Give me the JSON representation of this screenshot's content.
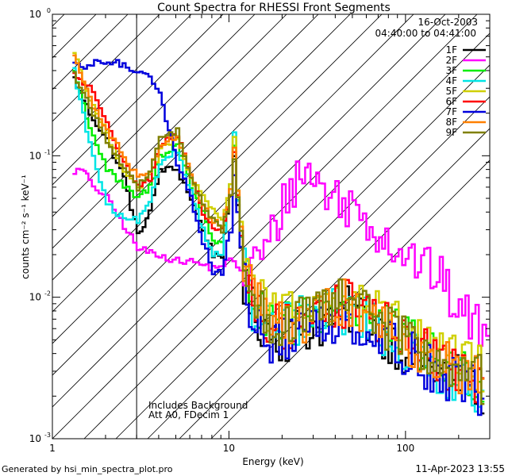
{
  "chart_data": {
    "type": "line",
    "title": "Count Spectra for RHESSI Front Segments",
    "xlabel": "Energy (keV)",
    "ylabel": "counts cm⁻² s⁻¹ keV⁻¹",
    "xscale": "log",
    "yscale": "log",
    "xlim": [
      1,
      300
    ],
    "ylim": [
      0.001,
      1
    ],
    "x_ticks": [
      {
        "value": 1,
        "label": "1"
      },
      {
        "value": 10,
        "label": "10"
      },
      {
        "value": 100,
        "label": "100"
      }
    ],
    "y_ticks": [
      {
        "value": 1,
        "label": "10",
        "exp": "0"
      },
      {
        "value": 0.1,
        "label": "10",
        "exp": "-1"
      },
      {
        "value": 0.01,
        "label": "10",
        "exp": "-2"
      },
      {
        "value": 0.001,
        "label": "10",
        "exp": "-3"
      }
    ],
    "date_label": "16-Oct-2003",
    "time_range_label": "04:40:00 to 04:41:00",
    "threshold_energy": 3,
    "annotations": [
      "Includes Background",
      "Att A0, FDecim 1"
    ],
    "series": [
      {
        "name": "1F",
        "color": "#000000",
        "points": [
          [
            1.3,
            0.35
          ],
          [
            1.6,
            0.2
          ],
          [
            2.0,
            0.13
          ],
          [
            2.5,
            0.07
          ],
          [
            3.0,
            0.027
          ],
          [
            3.5,
            0.04
          ],
          [
            4.0,
            0.08
          ],
          [
            5.0,
            0.08
          ],
          [
            6.0,
            0.05
          ],
          [
            7.0,
            0.03
          ],
          [
            8.0,
            0.02
          ],
          [
            9.0,
            0.02
          ],
          [
            10.0,
            0.05
          ],
          [
            10.5,
            0.1
          ],
          [
            11.0,
            0.045
          ],
          [
            12.0,
            0.012
          ],
          [
            14.0,
            0.007
          ],
          [
            17.0,
            0.006
          ],
          [
            20.0,
            0.005
          ],
          [
            25.0,
            0.006
          ],
          [
            30.0,
            0.006
          ],
          [
            40.0,
            0.008
          ],
          [
            50.0,
            0.008
          ],
          [
            60.0,
            0.007
          ],
          [
            80.0,
            0.005
          ],
          [
            100.0,
            0.004
          ],
          [
            150.0,
            0.003
          ],
          [
            200.0,
            0.0028
          ],
          [
            280.0,
            0.002
          ]
        ]
      },
      {
        "name": "2F",
        "color": "#ff00ff",
        "points": [
          [
            1.3,
            0.078
          ],
          [
            1.5,
            0.078
          ],
          [
            1.6,
            0.065
          ],
          [
            2.0,
            0.05
          ],
          [
            2.5,
            0.032
          ],
          [
            3.0,
            0.022
          ],
          [
            4.0,
            0.02
          ],
          [
            5.0,
            0.018
          ],
          [
            6.0,
            0.018
          ],
          [
            8.0,
            0.016
          ],
          [
            10.0,
            0.018
          ],
          [
            12.0,
            0.015
          ],
          [
            15.0,
            0.02
          ],
          [
            18.0,
            0.03
          ],
          [
            20.0,
            0.045
          ],
          [
            22.0,
            0.06
          ],
          [
            25.0,
            0.075
          ],
          [
            27.0,
            0.078
          ],
          [
            30.0,
            0.07
          ],
          [
            35.0,
            0.055
          ],
          [
            40.0,
            0.05
          ],
          [
            50.0,
            0.043
          ],
          [
            60.0,
            0.035
          ],
          [
            80.0,
            0.025
          ],
          [
            100.0,
            0.02
          ],
          [
            150.0,
            0.014
          ],
          [
            200.0,
            0.008
          ],
          [
            260.0,
            0.006
          ],
          [
            300.0,
            0.0045
          ]
        ]
      },
      {
        "name": "3F",
        "color": "#00ee00",
        "points": [
          [
            1.3,
            0.4
          ],
          [
            1.6,
            0.16
          ],
          [
            2.0,
            0.08
          ],
          [
            2.5,
            0.06
          ],
          [
            3.0,
            0.05
          ],
          [
            3.5,
            0.06
          ],
          [
            4.0,
            0.1
          ],
          [
            5.0,
            0.12
          ],
          [
            6.0,
            0.06
          ],
          [
            7.0,
            0.04
          ],
          [
            8.0,
            0.025
          ],
          [
            9.0,
            0.025
          ],
          [
            10.0,
            0.05
          ],
          [
            10.5,
            0.12
          ],
          [
            11.0,
            0.05
          ],
          [
            12.0,
            0.015
          ],
          [
            14.0,
            0.008
          ],
          [
            17.0,
            0.006
          ],
          [
            20.0,
            0.006
          ],
          [
            25.0,
            0.007
          ],
          [
            30.0,
            0.007
          ],
          [
            40.0,
            0.009
          ],
          [
            50.0,
            0.009
          ],
          [
            60.0,
            0.008
          ],
          [
            80.0,
            0.006
          ],
          [
            100.0,
            0.005
          ],
          [
            150.0,
            0.0035
          ],
          [
            200.0,
            0.003
          ],
          [
            280.0,
            0.0025
          ]
        ]
      },
      {
        "name": "4F",
        "color": "#00e5e5",
        "points": [
          [
            1.3,
            0.4
          ],
          [
            1.6,
            0.12
          ],
          [
            2.0,
            0.045
          ],
          [
            2.5,
            0.035
          ],
          [
            3.0,
            0.035
          ],
          [
            3.5,
            0.045
          ],
          [
            4.0,
            0.09
          ],
          [
            5.0,
            0.11
          ],
          [
            6.0,
            0.055
          ],
          [
            7.0,
            0.03
          ],
          [
            8.0,
            0.02
          ],
          [
            9.0,
            0.02
          ],
          [
            10.0,
            0.06
          ],
          [
            10.5,
            0.15
          ],
          [
            11.0,
            0.05
          ],
          [
            12.0,
            0.015
          ],
          [
            14.0,
            0.007
          ],
          [
            17.0,
            0.006
          ],
          [
            20.0,
            0.006
          ],
          [
            25.0,
            0.007
          ],
          [
            30.0,
            0.007
          ],
          [
            40.0,
            0.008
          ],
          [
            50.0,
            0.008
          ],
          [
            60.0,
            0.007
          ],
          [
            80.0,
            0.005
          ],
          [
            100.0,
            0.004
          ],
          [
            150.0,
            0.003
          ],
          [
            200.0,
            0.0025
          ],
          [
            280.0,
            0.002
          ]
        ]
      },
      {
        "name": "5F",
        "color": "#d0d000",
        "points": [
          [
            1.3,
            0.55
          ],
          [
            1.6,
            0.25
          ],
          [
            2.0,
            0.14
          ],
          [
            2.5,
            0.08
          ],
          [
            3.0,
            0.06
          ],
          [
            3.5,
            0.07
          ],
          [
            4.0,
            0.11
          ],
          [
            5.0,
            0.13
          ],
          [
            6.0,
            0.07
          ],
          [
            7.0,
            0.05
          ],
          [
            8.0,
            0.04
          ],
          [
            9.0,
            0.035
          ],
          [
            10.0,
            0.06
          ],
          [
            10.5,
            0.14
          ],
          [
            11.0,
            0.06
          ],
          [
            12.0,
            0.02
          ],
          [
            14.0,
            0.01
          ],
          [
            17.0,
            0.008
          ],
          [
            20.0,
            0.007
          ],
          [
            25.0,
            0.008
          ],
          [
            30.0,
            0.008
          ],
          [
            40.0,
            0.01
          ],
          [
            50.0,
            0.01
          ],
          [
            60.0,
            0.009
          ],
          [
            80.0,
            0.007
          ],
          [
            100.0,
            0.006
          ],
          [
            150.0,
            0.004
          ],
          [
            200.0,
            0.0035
          ],
          [
            280.0,
            0.003
          ]
        ]
      },
      {
        "name": "6F",
        "color": "#ff0000",
        "points": [
          [
            1.3,
            0.38
          ],
          [
            1.6,
            0.3
          ],
          [
            2.0,
            0.18
          ],
          [
            2.5,
            0.09
          ],
          [
            3.0,
            0.06
          ],
          [
            3.5,
            0.07
          ],
          [
            4.0,
            0.12
          ],
          [
            5.0,
            0.14
          ],
          [
            6.0,
            0.07
          ],
          [
            7.0,
            0.04
          ],
          [
            8.0,
            0.03
          ],
          [
            9.0,
            0.03
          ],
          [
            10.0,
            0.05
          ],
          [
            10.5,
            0.11
          ],
          [
            11.0,
            0.05
          ],
          [
            12.0,
            0.015
          ],
          [
            14.0,
            0.008
          ],
          [
            17.0,
            0.006
          ],
          [
            20.0,
            0.006
          ],
          [
            25.0,
            0.007
          ],
          [
            30.0,
            0.007
          ],
          [
            40.0,
            0.009
          ],
          [
            50.0,
            0.009
          ],
          [
            60.0,
            0.008
          ],
          [
            80.0,
            0.006
          ],
          [
            100.0,
            0.005
          ],
          [
            150.0,
            0.0035
          ],
          [
            200.0,
            0.003
          ],
          [
            280.0,
            0.0025
          ]
        ]
      },
      {
        "name": "7F",
        "color": "#0000dd",
        "points": [
          [
            1.3,
            0.43
          ],
          [
            1.5,
            0.42
          ],
          [
            1.8,
            0.46
          ],
          [
            2.2,
            0.46
          ],
          [
            2.6,
            0.42
          ],
          [
            3.0,
            0.4
          ],
          [
            3.5,
            0.38
          ],
          [
            4.0,
            0.27
          ],
          [
            4.5,
            0.15
          ],
          [
            5.0,
            0.09
          ],
          [
            6.0,
            0.05
          ],
          [
            7.0,
            0.025
          ],
          [
            8.0,
            0.015
          ],
          [
            9.0,
            0.015
          ],
          [
            10.0,
            0.03
          ],
          [
            10.5,
            0.07
          ],
          [
            11.0,
            0.04
          ],
          [
            12.0,
            0.012
          ],
          [
            14.0,
            0.006
          ],
          [
            17.0,
            0.005
          ],
          [
            20.0,
            0.005
          ],
          [
            25.0,
            0.006
          ],
          [
            30.0,
            0.006
          ],
          [
            40.0,
            0.007
          ],
          [
            50.0,
            0.007
          ],
          [
            60.0,
            0.006
          ],
          [
            80.0,
            0.005
          ],
          [
            100.0,
            0.004
          ],
          [
            150.0,
            0.003
          ],
          [
            200.0,
            0.0025
          ],
          [
            280.0,
            0.002
          ]
        ]
      },
      {
        "name": "8F",
        "color": "#ff8000",
        "points": [
          [
            1.3,
            0.52
          ],
          [
            1.6,
            0.25
          ],
          [
            2.0,
            0.15
          ],
          [
            2.5,
            0.1
          ],
          [
            3.0,
            0.07
          ],
          [
            3.5,
            0.08
          ],
          [
            4.0,
            0.12
          ],
          [
            5.0,
            0.14
          ],
          [
            6.0,
            0.07
          ],
          [
            7.0,
            0.045
          ],
          [
            8.0,
            0.035
          ],
          [
            9.0,
            0.03
          ],
          [
            10.0,
            0.055
          ],
          [
            10.5,
            0.12
          ],
          [
            11.0,
            0.055
          ],
          [
            12.0,
            0.018
          ],
          [
            14.0,
            0.009
          ],
          [
            17.0,
            0.007
          ],
          [
            20.0,
            0.006
          ],
          [
            25.0,
            0.007
          ],
          [
            30.0,
            0.007
          ],
          [
            40.0,
            0.009
          ],
          [
            50.0,
            0.009
          ],
          [
            60.0,
            0.008
          ],
          [
            80.0,
            0.006
          ],
          [
            100.0,
            0.005
          ],
          [
            150.0,
            0.0035
          ],
          [
            200.0,
            0.003
          ],
          [
            280.0,
            0.0025
          ]
        ]
      },
      {
        "name": "9F",
        "color": "#808000",
        "points": [
          [
            1.3,
            0.38
          ],
          [
            1.6,
            0.22
          ],
          [
            2.0,
            0.13
          ],
          [
            2.5,
            0.08
          ],
          [
            3.0,
            0.06
          ],
          [
            3.5,
            0.08
          ],
          [
            4.0,
            0.13
          ],
          [
            5.0,
            0.15
          ],
          [
            6.0,
            0.07
          ],
          [
            7.0,
            0.045
          ],
          [
            8.0,
            0.035
          ],
          [
            9.0,
            0.03
          ],
          [
            10.0,
            0.05
          ],
          [
            10.5,
            0.1
          ],
          [
            11.0,
            0.05
          ],
          [
            12.0,
            0.017
          ],
          [
            14.0,
            0.009
          ],
          [
            17.0,
            0.007
          ],
          [
            20.0,
            0.006
          ],
          [
            25.0,
            0.007
          ],
          [
            30.0,
            0.007
          ],
          [
            40.0,
            0.009
          ],
          [
            50.0,
            0.009
          ],
          [
            60.0,
            0.008
          ],
          [
            80.0,
            0.006
          ],
          [
            100.0,
            0.005
          ],
          [
            150.0,
            0.0035
          ],
          [
            200.0,
            0.003
          ],
          [
            280.0,
            0.0025
          ]
        ]
      }
    ]
  },
  "footer": {
    "generated_by": "Generated by hsi_min_spectra_plot.pro",
    "timestamp": "11-Apr-2023 13:55"
  }
}
